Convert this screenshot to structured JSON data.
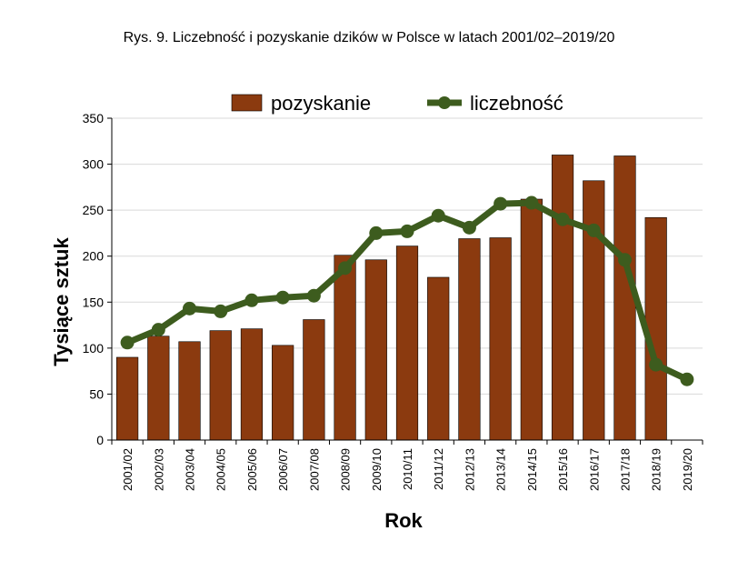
{
  "chart_data": {
    "type": "bar+line",
    "title": "Rys. 9. Liczebność i pozyskanie dzików w Polsce w latach 2001/02–2019/20",
    "xlabel": "Rok",
    "ylabel": "Tysiące sztuk",
    "ylim": [
      0,
      350
    ],
    "yticks": [
      "0",
      "50",
      "100",
      "150",
      "200",
      "250",
      "300",
      "350"
    ],
    "categories": [
      "2001/02",
      "2002/03",
      "2003/04",
      "2004/05",
      "2005/06",
      "2006/07",
      "2007/08",
      "2008/09",
      "2009/10",
      "2010/11",
      "2011/12",
      "2012/13",
      "2013/14",
      "2014/15",
      "2015/16",
      "2016/17",
      "2017/18",
      "2018/19",
      "2019/20"
    ],
    "grid": "horizontal",
    "legend_position": "top",
    "series": [
      {
        "name": "pozyskanie",
        "type": "bar",
        "color": "#8B3A0F",
        "values": [
          90,
          113,
          107,
          119,
          121,
          103,
          131,
          201,
          196,
          211,
          177,
          219,
          220,
          262,
          310,
          282,
          309,
          242,
          null
        ]
      },
      {
        "name": "liczebność",
        "type": "line",
        "color": "#3D5C1E",
        "values": [
          106,
          120,
          143,
          140,
          152,
          155,
          157,
          187,
          225,
          227,
          244,
          231,
          257,
          258,
          240,
          228,
          196,
          82,
          66
        ]
      }
    ]
  }
}
